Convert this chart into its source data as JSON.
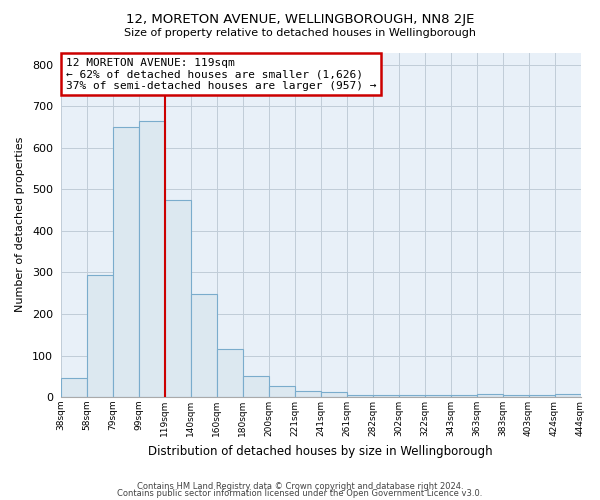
{
  "title": "12, MORETON AVENUE, WELLINGBOROUGH, NN8 2JE",
  "subtitle": "Size of property relative to detached houses in Wellingborough",
  "xlabel": "Distribution of detached houses by size in Wellingborough",
  "ylabel": "Number of detached properties",
  "footer_lines": [
    "Contains HM Land Registry data © Crown copyright and database right 2024.",
    "Contains public sector information licensed under the Open Government Licence v3.0."
  ],
  "bin_labels": [
    "38sqm",
    "58sqm",
    "79sqm",
    "99sqm",
    "119sqm",
    "140sqm",
    "160sqm",
    "180sqm",
    "200sqm",
    "221sqm",
    "241sqm",
    "261sqm",
    "282sqm",
    "302sqm",
    "322sqm",
    "343sqm",
    "363sqm",
    "383sqm",
    "403sqm",
    "424sqm",
    "444sqm"
  ],
  "bar_values": [
    47,
    295,
    650,
    665,
    475,
    248,
    115,
    50,
    27,
    15,
    12,
    5,
    5,
    5,
    5,
    5,
    8,
    5,
    5,
    8
  ],
  "bar_color": "#dce8f0",
  "bar_edge_color": "#7aaccc",
  "vline_x_index": 4,
  "vline_color": "#cc0000",
  "annotation_box_text": "12 MORETON AVENUE: 119sqm\n← 62% of detached houses are smaller (1,626)\n37% of semi-detached houses are larger (957) →",
  "annotation_box_color": "#cc0000",
  "annotation_box_bg": "#ffffff",
  "ylim": [
    0,
    830
  ],
  "yticks": [
    0,
    100,
    200,
    300,
    400,
    500,
    600,
    700,
    800
  ],
  "background_color": "#ffffff",
  "plot_bg_color": "#e8f0f8",
  "grid_color": "#c0ccd8"
}
